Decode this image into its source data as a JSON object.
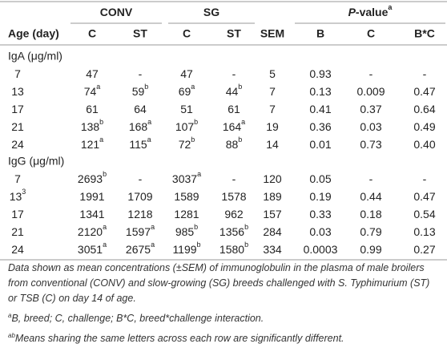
{
  "header": {
    "groups": [
      {
        "label": "CONV"
      },
      {
        "label": "SG"
      },
      {
        "label_italic": "P",
        "label": "-value",
        "sup": "a"
      }
    ],
    "columns": [
      "Age (day)",
      "C",
      "ST",
      "C",
      "ST",
      "SEM",
      "B",
      "C",
      "B*C"
    ]
  },
  "sections": [
    {
      "label": "IgA (μg/ml)",
      "rows": [
        [
          "7",
          "47",
          "-",
          "47",
          "-",
          "5",
          "0.93",
          "-",
          "-"
        ],
        [
          "13",
          {
            "text": "74",
            "sup": "a"
          },
          {
            "text": "59",
            "sup": "b"
          },
          {
            "text": "69",
            "sup": "a"
          },
          {
            "text": "44",
            "sup": "b"
          },
          "7",
          "0.13",
          "0.009",
          "0.47"
        ],
        [
          "17",
          "61",
          "64",
          "51",
          "61",
          "7",
          "0.41",
          "0.37",
          "0.64"
        ],
        [
          "21",
          {
            "text": "138",
            "sup": "b"
          },
          {
            "text": "168",
            "sup": "a"
          },
          {
            "text": "107",
            "sup": "b"
          },
          {
            "text": "164",
            "sup": "a"
          },
          "19",
          "0.36",
          "0.03",
          "0.49"
        ],
        [
          "24",
          {
            "text": "121",
            "sup": "a"
          },
          {
            "text": "115",
            "sup": "a"
          },
          {
            "text": "72",
            "sup": "b"
          },
          {
            "text": "88",
            "sup": "b"
          },
          "14",
          "0.01",
          "0.73",
          "0.40"
        ]
      ]
    },
    {
      "label": "IgG (μg/ml)",
      "rows": [
        [
          "7",
          {
            "text": "2693",
            "sup": "b"
          },
          "-",
          {
            "text": "3037",
            "sup": "a"
          },
          "-",
          "120",
          "0.05",
          "-",
          "-"
        ],
        [
          {
            "text": "13",
            "sup": "3"
          },
          "1991",
          "1709",
          "1589",
          "1578",
          "189",
          "0.19",
          "0.44",
          "0.47"
        ],
        [
          "17",
          "1341",
          "1218",
          "1281",
          "962",
          "157",
          "0.33",
          "0.18",
          "0.54"
        ],
        [
          "21",
          {
            "text": "2120",
            "sup": "a"
          },
          {
            "text": "1597",
            "sup": "a"
          },
          {
            "text": "985",
            "sup": "b"
          },
          {
            "text": "1356",
            "sup": "b"
          },
          "284",
          "0.03",
          "0.79",
          "0.13"
        ],
        [
          "24",
          {
            "text": "3051",
            "sup": "a"
          },
          {
            "text": "2675",
            "sup": "a"
          },
          {
            "text": "1199",
            "sup": "b"
          },
          {
            "text": "1580",
            "sup": "b"
          },
          "334",
          "0.0003",
          "0.99",
          "0.27"
        ]
      ]
    }
  ],
  "footnotes": [
    {
      "text": "Data shown as mean concentrations (±SEM) of immunoglobulin in the plasma of male broilers from conventional (CONV) and slow-growing (SG) breeds challenged with S. Typhimurium (ST) or TSB (C) on day 14 of age."
    },
    {
      "sup": "a",
      "text": "B, breed; C, challenge; B*C, breed*challenge interaction."
    },
    {
      "sup": "ab",
      "text": "Means sharing the same letters across each row are significantly different."
    }
  ]
}
